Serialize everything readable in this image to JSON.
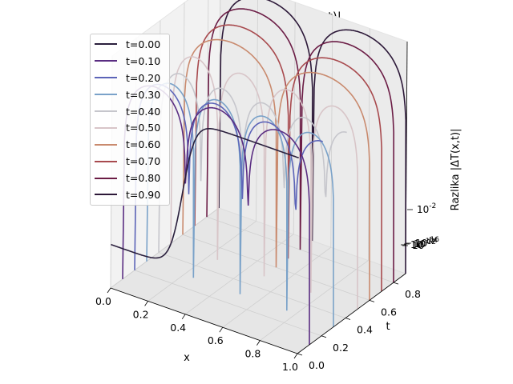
{
  "chart_data": {
    "type": "line",
    "title": "Periodične - Razlika |ΔT(x,t)|",
    "xlabel": "x",
    "ylabel": "t",
    "zlabel": "Razlika |ΔT(x,t)|",
    "zscale": "log",
    "xlim": [
      0.0,
      1.0
    ],
    "ylim": [
      0.0,
      0.9
    ],
    "x_ticks": [
      "0.0",
      "0.2",
      "0.4",
      "0.6",
      "0.8",
      "1.0"
    ],
    "y_ticks": [
      "0.0",
      "0.2",
      "0.4",
      "0.6",
      "0.8"
    ],
    "z_ticks": [
      "10^-2",
      "10^-10",
      "10^-12",
      "10^-14",
      "10^-16"
    ],
    "grid": true,
    "legend_position": "top-left",
    "series": [
      {
        "name": "t=0.00",
        "t": 0.0,
        "color": "#2a1f3d",
        "profile": "edge-step",
        "peak_log10": -1.0
      },
      {
        "name": "t=0.10",
        "t": 0.1,
        "color": "#5a2d82",
        "profile": "periodic",
        "periods": 3.0,
        "peak_log10": -2.0
      },
      {
        "name": "t=0.20",
        "t": 0.2,
        "color": "#5c64b8",
        "profile": "periodic",
        "periods": 3.5,
        "peak_log10": -2.6
      },
      {
        "name": "t=0.30",
        "t": 0.3,
        "color": "#7aa2c9",
        "profile": "periodic",
        "periods": 4.0,
        "peak_log10": -3.2
      },
      {
        "name": "t=0.40",
        "t": 0.4,
        "color": "#c6c6cc",
        "profile": "periodic",
        "periods": 4.5,
        "peak_log10": -3.2
      },
      {
        "name": "t=0.50",
        "t": 0.5,
        "color": "#d8c5c8",
        "profile": "periodic",
        "periods": 4.0,
        "peak_log10": -2.6
      },
      {
        "name": "t=0.60",
        "t": 0.6,
        "color": "#c98a6e",
        "profile": "periodic",
        "periods": 2.0,
        "peak_log10": -1.6
      },
      {
        "name": "t=0.70",
        "t": 0.7,
        "color": "#a84a4e",
        "profile": "periodic",
        "periods": 2.0,
        "peak_log10": -1.2
      },
      {
        "name": "t=0.80",
        "t": 0.8,
        "color": "#6b1c45",
        "profile": "periodic",
        "periods": 2.0,
        "peak_log10": -0.7
      },
      {
        "name": "t=0.90",
        "t": 0.9,
        "color": "#2c1838",
        "profile": "periodic",
        "periods": 2.0,
        "peak_log10": -0.5
      }
    ]
  }
}
